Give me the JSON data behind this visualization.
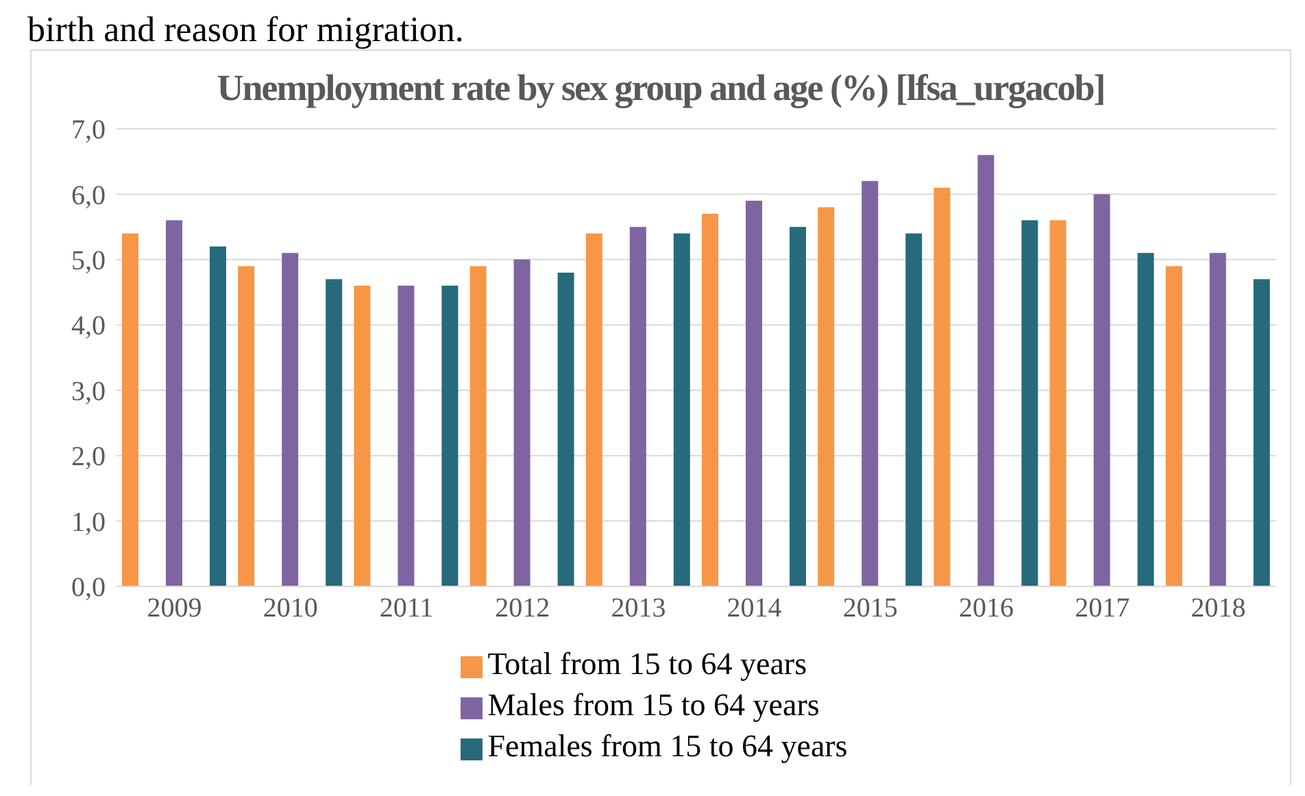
{
  "chart_data": {
    "type": "bar",
    "title": "Unemployment rate by sex group and age (%) [lfsa_urgacob]",
    "annotations": [
      "birth and reason for migration."
    ],
    "categories": [
      "2009",
      "2010",
      "2011",
      "2012",
      "2013",
      "2014",
      "2015",
      "2016",
      "2017",
      "2018"
    ],
    "series": [
      {
        "name": "Total from 15 to 64 years",
        "color": "#f79646",
        "values": [
          5.4,
          4.9,
          4.6,
          4.9,
          5.4,
          5.7,
          5.8,
          6.1,
          5.6,
          4.9
        ]
      },
      {
        "name": "Males from 15 to 64 years",
        "color": "#8064a2",
        "values": [
          5.6,
          5.1,
          4.6,
          5.0,
          5.5,
          5.9,
          6.2,
          6.6,
          6.0,
          5.1
        ]
      },
      {
        "name": "Females from 15 to 64 years",
        "color": "#276a7c",
        "values": [
          5.2,
          4.7,
          4.6,
          4.8,
          5.4,
          5.5,
          5.4,
          5.6,
          5.1,
          4.7
        ]
      }
    ],
    "ylim": [
      0,
      7
    ],
    "yticks": [
      {
        "value": 0,
        "label": "0,0"
      },
      {
        "value": 1,
        "label": "1,0"
      },
      {
        "value": 2,
        "label": "2,0"
      },
      {
        "value": 3,
        "label": "3,0"
      },
      {
        "value": 4,
        "label": "4,0"
      },
      {
        "value": 5,
        "label": "5,0"
      },
      {
        "value": 6,
        "label": "6,0"
      },
      {
        "value": 7,
        "label": "7,0"
      }
    ],
    "grid": "y",
    "legend": "bottom"
  }
}
